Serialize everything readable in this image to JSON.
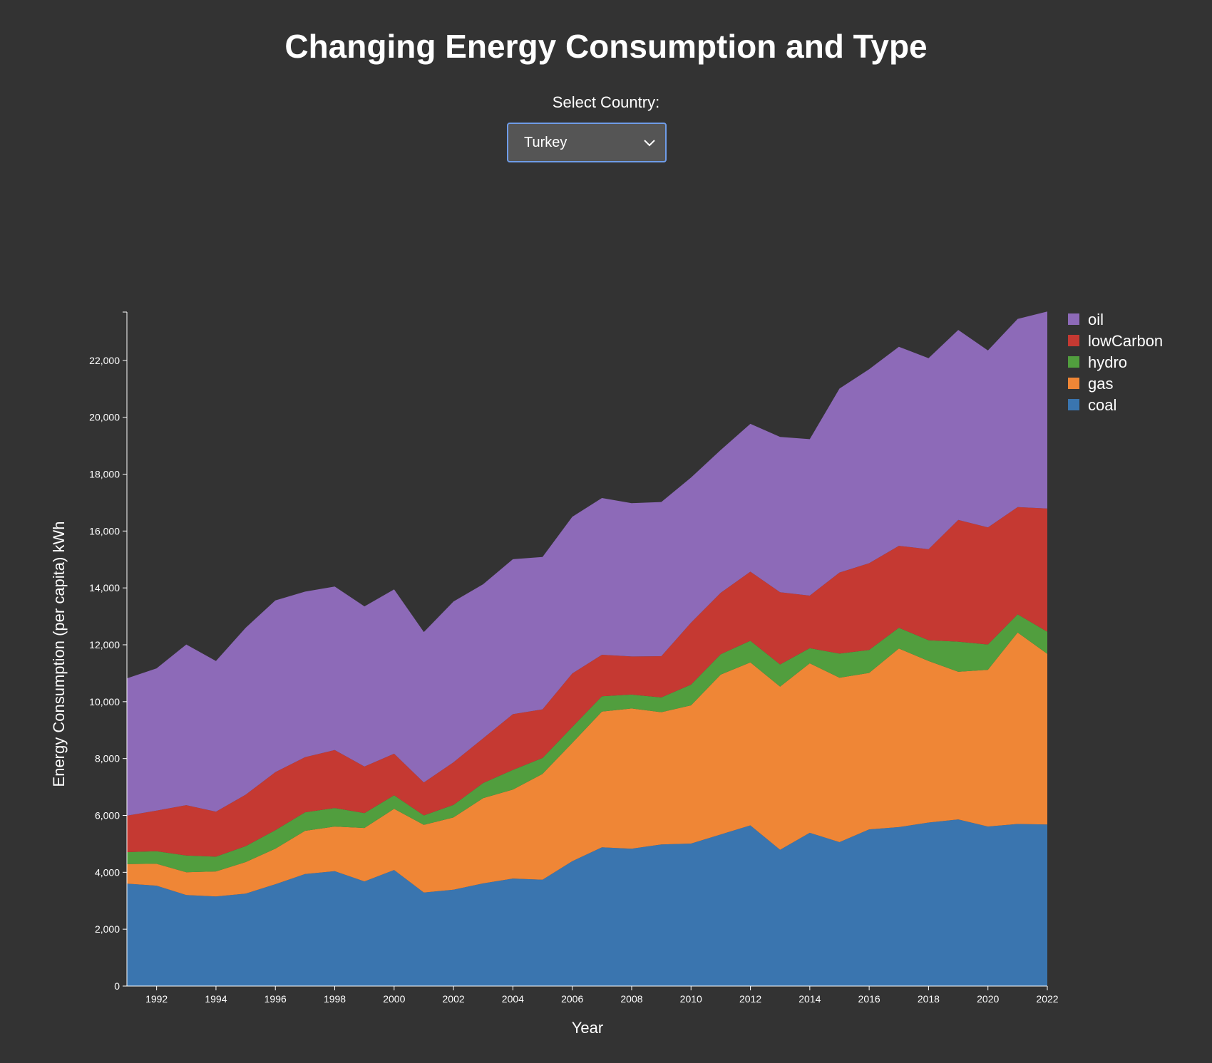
{
  "header": {
    "title": "Changing Energy Consumption and Type",
    "select_label": "Select Country:",
    "selected_country": "Turkey"
  },
  "chart_data": {
    "type": "area",
    "stacked": true,
    "title": "Changing Energy Consumption and Type",
    "xlabel": "Year",
    "ylabel": "Energy Consumption (per capita) kWh",
    "xlim": [
      1991,
      2022
    ],
    "ylim": [
      0,
      23700
    ],
    "x_ticks": [
      "1992",
      "1994",
      "1996",
      "1998",
      "2000",
      "2002",
      "2004",
      "2006",
      "2008",
      "2010",
      "2012",
      "2014",
      "2016",
      "2018",
      "2020",
      "2022"
    ],
    "y_ticks": [
      "0",
      "2,000",
      "4,000",
      "6,000",
      "8,000",
      "10,000",
      "12,000",
      "14,000",
      "16,000",
      "18,000",
      "20,000",
      "22,000"
    ],
    "y_tick_values": [
      0,
      2000,
      4000,
      6000,
      8000,
      10000,
      12000,
      14000,
      16000,
      18000,
      20000,
      22000
    ],
    "legend_position": "top-right",
    "x": [
      1991,
      1992,
      1993,
      1994,
      1995,
      1996,
      1997,
      1998,
      1999,
      2000,
      2001,
      2002,
      2003,
      2004,
      2005,
      2006,
      2007,
      2008,
      2009,
      2010,
      2011,
      2012,
      2013,
      2014,
      2015,
      2016,
      2017,
      2018,
      2019,
      2020,
      2021,
      2022
    ],
    "series": [
      {
        "name": "coal",
        "color": "#3a75af",
        "values": [
          3600,
          3530,
          3200,
          3150,
          3250,
          3580,
          3940,
          4040,
          3680,
          4080,
          3290,
          3390,
          3610,
          3780,
          3740,
          4390,
          4880,
          4830,
          4980,
          5010,
          5330,
          5650,
          4790,
          5390,
          5060,
          5510,
          5590,
          5750,
          5860,
          5610,
          5700,
          5680
        ]
      },
      {
        "name": "gas",
        "color": "#ef8636",
        "values": [
          690,
          770,
          800,
          880,
          1110,
          1250,
          1520,
          1570,
          1880,
          2150,
          2380,
          2540,
          3000,
          3130,
          3720,
          4160,
          4770,
          4930,
          4650,
          4860,
          5620,
          5730,
          5740,
          5960,
          5780,
          5500,
          6280,
          5680,
          5190,
          5510,
          6730,
          6000
        ]
      },
      {
        "name": "hydro",
        "color": "#519e3e",
        "values": [
          420,
          440,
          590,
          520,
          560,
          650,
          650,
          650,
          520,
          480,
          330,
          440,
          530,
          690,
          560,
          560,
          540,
          490,
          520,
          730,
          720,
          760,
          780,
          530,
          850,
          810,
          730,
          730,
          1060,
          890,
          640,
          780
        ]
      },
      {
        "name": "lowCarbon",
        "color": "#c53932",
        "values": [
          1280,
          1430,
          1770,
          1580,
          1810,
          2040,
          1940,
          2040,
          1640,
          1460,
          1160,
          1500,
          1570,
          1960,
          1710,
          1880,
          1460,
          1340,
          1450,
          2180,
          2160,
          2430,
          2540,
          1850,
          2850,
          3050,
          2880,
          3200,
          4280,
          4120,
          3770,
          4330
        ]
      },
      {
        "name": "oil",
        "color": "#8d6ab8",
        "values": [
          4830,
          5000,
          5650,
          5300,
          5870,
          6040,
          5820,
          5750,
          5630,
          5780,
          5290,
          5650,
          5420,
          5450,
          5360,
          5510,
          5510,
          5390,
          5420,
          5100,
          5020,
          5200,
          5460,
          5500,
          6470,
          6820,
          7000,
          6720,
          6680,
          6220,
          6620,
          6930
        ]
      }
    ]
  }
}
